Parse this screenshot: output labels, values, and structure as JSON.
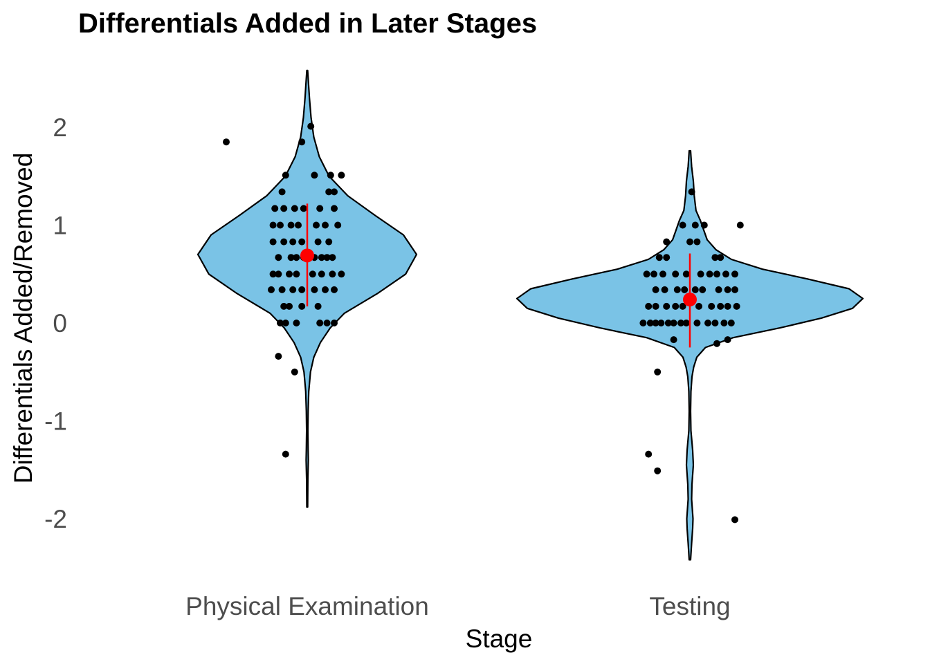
{
  "chart_data": {
    "type": "violin",
    "title": "Differentials Added in Later Stages",
    "xlabel": "Stage",
    "ylabel": "Differentials Added/Removed",
    "categories": [
      "Physical Examination",
      "Testing"
    ],
    "y_ticks": [
      "-2",
      "-1",
      "0",
      "1",
      "2"
    ],
    "ylim": [
      -2.55,
      2.75
    ],
    "grid": false,
    "colors": {
      "violin_fill": "#7AC3E6",
      "violin_stroke": "#000000",
      "points": "#000000",
      "summary": "#FF0000"
    },
    "series": [
      {
        "category": "Physical Examination",
        "mean": 0.69,
        "interval": [
          0.17,
          1.22
        ],
        "density_profile": [
          [
            -1.88,
            0.004
          ],
          [
            -1.6,
            0.006
          ],
          [
            -1.4,
            0.01
          ],
          [
            -1.3,
            0.008
          ],
          [
            -1.1,
            0.006
          ],
          [
            -0.9,
            0.008
          ],
          [
            -0.7,
            0.014
          ],
          [
            -0.5,
            0.03
          ],
          [
            -0.35,
            0.06
          ],
          [
            -0.2,
            0.12
          ],
          [
            -0.05,
            0.21
          ],
          [
            0.1,
            0.34
          ],
          [
            0.3,
            0.64
          ],
          [
            0.5,
            0.9
          ],
          [
            0.7,
            1.0
          ],
          [
            0.9,
            0.88
          ],
          [
            1.1,
            0.62
          ],
          [
            1.3,
            0.37
          ],
          [
            1.5,
            0.2
          ],
          [
            1.7,
            0.11
          ],
          [
            1.9,
            0.06
          ],
          [
            2.1,
            0.035
          ],
          [
            2.3,
            0.02
          ],
          [
            2.58,
            0.004
          ]
        ],
        "points": [
          [
            -0.45,
            1.85
          ],
          [
            0.02,
            2.01
          ],
          [
            -0.03,
            1.85
          ],
          [
            -0.12,
            1.51
          ],
          [
            0.04,
            1.51
          ],
          [
            0.13,
            1.51
          ],
          [
            0.19,
            1.51
          ],
          [
            -0.14,
            1.34
          ],
          [
            0.12,
            1.34
          ],
          [
            0.15,
            1.34
          ],
          [
            -0.18,
            1.17
          ],
          [
            -0.13,
            1.17
          ],
          [
            -0.07,
            1.17
          ],
          [
            -0.02,
            1.17
          ],
          [
            0.07,
            1.17
          ],
          [
            0.15,
            1.17
          ],
          [
            -0.19,
            1.0
          ],
          [
            -0.15,
            1.0
          ],
          [
            -0.09,
            1.0
          ],
          [
            -0.05,
            1.0
          ],
          [
            0.05,
            1.0
          ],
          [
            0.1,
            1.0
          ],
          [
            0.17,
            1.0
          ],
          [
            -0.19,
            0.83
          ],
          [
            -0.13,
            0.83
          ],
          [
            -0.08,
            0.83
          ],
          [
            -0.03,
            0.83
          ],
          [
            0.06,
            0.83
          ],
          [
            0.12,
            0.83
          ],
          [
            -0.16,
            0.67
          ],
          [
            -0.09,
            0.67
          ],
          [
            -0.06,
            0.67
          ],
          [
            -0.02,
            0.67
          ],
          [
            0.04,
            0.67
          ],
          [
            0.08,
            0.67
          ],
          [
            0.11,
            0.67
          ],
          [
            0.14,
            0.67
          ],
          [
            -0.19,
            0.5
          ],
          [
            -0.16,
            0.5
          ],
          [
            -0.1,
            0.5
          ],
          [
            -0.06,
            0.5
          ],
          [
            0.03,
            0.5
          ],
          [
            0.08,
            0.5
          ],
          [
            0.14,
            0.5
          ],
          [
            0.19,
            0.5
          ],
          [
            -0.2,
            0.34
          ],
          [
            -0.14,
            0.34
          ],
          [
            -0.08,
            0.34
          ],
          [
            -0.03,
            0.34
          ],
          [
            0.04,
            0.34
          ],
          [
            0.1,
            0.34
          ],
          [
            0.15,
            0.34
          ],
          [
            -0.13,
            0.17
          ],
          [
            -0.1,
            0.17
          ],
          [
            -0.03,
            0.17
          ],
          [
            0.06,
            0.17
          ],
          [
            -0.15,
            0.0
          ],
          [
            -0.12,
            0.0
          ],
          [
            -0.06,
            0.0
          ],
          [
            0.07,
            0.0
          ],
          [
            0.11,
            0.0
          ],
          [
            0.15,
            0.0
          ],
          [
            -0.16,
            -0.34
          ],
          [
            -0.07,
            -0.5
          ],
          [
            -0.12,
            -1.34
          ]
        ]
      },
      {
        "category": "Testing",
        "mean": 0.24,
        "interval": [
          -0.25,
          0.71
        ],
        "density_profile": [
          [
            -2.42,
            0.004
          ],
          [
            -2.25,
            0.01
          ],
          [
            -2.1,
            0.016
          ],
          [
            -2.0,
            0.018
          ],
          [
            -1.9,
            0.014
          ],
          [
            -1.8,
            0.01
          ],
          [
            -1.65,
            0.012
          ],
          [
            -1.45,
            0.02
          ],
          [
            -1.3,
            0.016
          ],
          [
            -1.1,
            0.006
          ],
          [
            -0.9,
            0.004
          ],
          [
            -0.7,
            0.006
          ],
          [
            -0.55,
            0.012
          ],
          [
            -0.45,
            0.022
          ],
          [
            -0.35,
            0.04
          ],
          [
            -0.25,
            0.09
          ],
          [
            -0.15,
            0.25
          ],
          [
            -0.05,
            0.52
          ],
          [
            0.05,
            0.76
          ],
          [
            0.15,
            0.94
          ],
          [
            0.25,
            1.0
          ],
          [
            0.35,
            0.92
          ],
          [
            0.45,
            0.68
          ],
          [
            0.55,
            0.42
          ],
          [
            0.65,
            0.24
          ],
          [
            0.75,
            0.15
          ],
          [
            0.85,
            0.1
          ],
          [
            0.95,
            0.08
          ],
          [
            1.05,
            0.06
          ],
          [
            1.15,
            0.035
          ],
          [
            1.3,
            0.025
          ],
          [
            1.45,
            0.02
          ],
          [
            1.6,
            0.01
          ],
          [
            1.76,
            0.004
          ]
        ],
        "points": [
          [
            0.01,
            1.34
          ],
          [
            -0.04,
            1.0
          ],
          [
            0.03,
            1.0
          ],
          [
            0.08,
            1.0
          ],
          [
            0.28,
            1.0
          ],
          [
            -0.13,
            0.83
          ],
          [
            0.0,
            0.83
          ],
          [
            0.04,
            0.83
          ],
          [
            -0.17,
            0.67
          ],
          [
            -0.13,
            0.67
          ],
          [
            0.14,
            0.67
          ],
          [
            0.17,
            0.67
          ],
          [
            -0.24,
            0.5
          ],
          [
            -0.2,
            0.5
          ],
          [
            -0.15,
            0.5
          ],
          [
            -0.08,
            0.5
          ],
          [
            -0.02,
            0.5
          ],
          [
            0.06,
            0.5
          ],
          [
            0.11,
            0.5
          ],
          [
            0.15,
            0.5
          ],
          [
            0.2,
            0.5
          ],
          [
            0.25,
            0.5
          ],
          [
            -0.19,
            0.34
          ],
          [
            -0.14,
            0.34
          ],
          [
            -0.07,
            0.34
          ],
          [
            -0.03,
            0.34
          ],
          [
            0.03,
            0.34
          ],
          [
            0.07,
            0.34
          ],
          [
            0.16,
            0.34
          ],
          [
            0.21,
            0.34
          ],
          [
            0.25,
            0.34
          ],
          [
            -0.23,
            0.17
          ],
          [
            -0.19,
            0.17
          ],
          [
            -0.13,
            0.17
          ],
          [
            -0.08,
            0.17
          ],
          [
            -0.04,
            0.17
          ],
          [
            0.05,
            0.17
          ],
          [
            0.12,
            0.17
          ],
          [
            0.17,
            0.17
          ],
          [
            0.21,
            0.17
          ],
          [
            0.26,
            0.17
          ],
          [
            -0.26,
            0.0
          ],
          [
            -0.22,
            0.0
          ],
          [
            -0.19,
            0.0
          ],
          [
            -0.16,
            0.0
          ],
          [
            -0.12,
            0.0
          ],
          [
            -0.09,
            0.0
          ],
          [
            -0.05,
            0.0
          ],
          [
            -0.02,
            0.0
          ],
          [
            0.04,
            0.0
          ],
          [
            0.1,
            0.0
          ],
          [
            0.14,
            0.0
          ],
          [
            0.19,
            0.0
          ],
          [
            0.23,
            0.0
          ],
          [
            -0.09,
            -0.17
          ],
          [
            0.15,
            -0.21
          ],
          [
            0.21,
            -0.17
          ],
          [
            -0.18,
            -0.5
          ],
          [
            -0.23,
            -1.34
          ],
          [
            -0.18,
            -1.51
          ],
          [
            0.25,
            -2.01
          ]
        ]
      }
    ]
  }
}
